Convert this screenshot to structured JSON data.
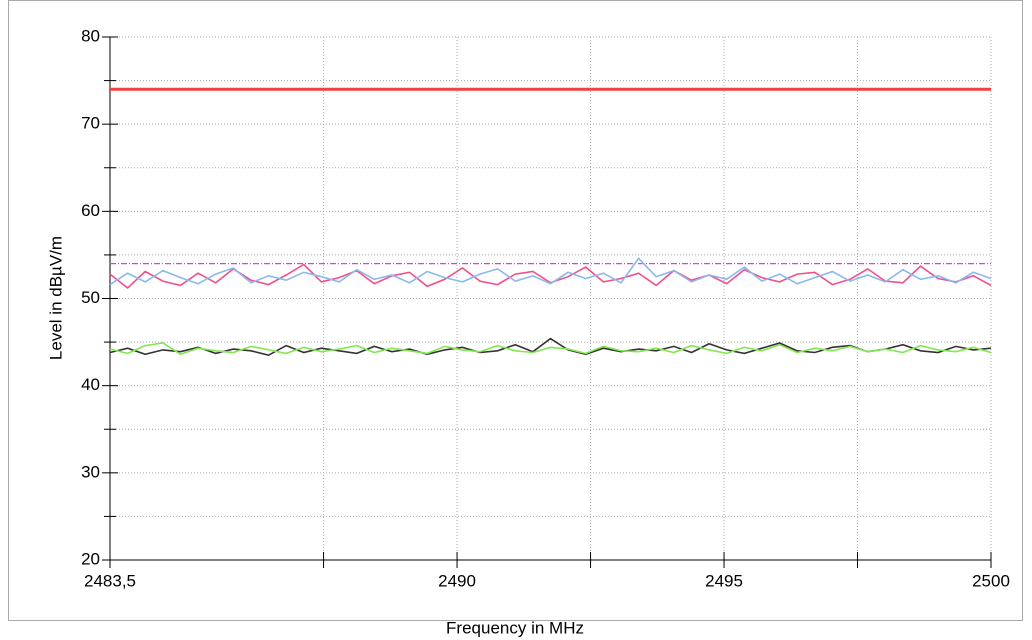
{
  "chart_data": {
    "type": "line",
    "xlabel": "Frequency in MHz",
    "ylabel": "Level in dBµV/m",
    "xlim": [
      2483.5,
      2500
    ],
    "xticks": [
      {
        "value": 2483.5,
        "label": "2483,5"
      },
      2490,
      2495,
      2500
    ],
    "xminor_ticks": [
      2487.5,
      2492.5,
      2497.5
    ],
    "ylim": [
      20,
      80
    ],
    "yticks": [
      20,
      30,
      40,
      50,
      60,
      70,
      80
    ],
    "yminor_ticks": [
      25,
      35,
      45,
      55,
      65,
      75
    ],
    "grid": true,
    "hlines": [
      {
        "value": 74,
        "color": "#f04040",
        "style": "solid"
      },
      {
        "value": 54,
        "color": "#e040e0",
        "style": "dashdot"
      }
    ],
    "x": [
      2483.5,
      2483.83,
      2484.16,
      2484.49,
      2484.82,
      2485.15,
      2485.48,
      2485.81,
      2486.14,
      2486.47,
      2486.8,
      2487.13,
      2487.46,
      2487.79,
      2488.12,
      2488.45,
      2488.78,
      2489.11,
      2489.44,
      2489.77,
      2490.1,
      2490.43,
      2490.76,
      2491.09,
      2491.42,
      2491.75,
      2492.08,
      2492.41,
      2492.74,
      2493.07,
      2493.4,
      2493.73,
      2494.06,
      2494.39,
      2494.72,
      2495.05,
      2495.38,
      2495.71,
      2496.04,
      2496.37,
      2496.7,
      2497.03,
      2497.36,
      2497.69,
      2498.02,
      2498.35,
      2498.68,
      2499.01,
      2499.34,
      2499.67,
      2500
    ],
    "series": [
      {
        "color": "#f0508a",
        "values": [
          52.8,
          51.2,
          53.1,
          52.0,
          51.5,
          52.9,
          51.8,
          53.4,
          52.1,
          51.6,
          52.7,
          53.9,
          51.9,
          52.4,
          53.2,
          51.7,
          52.6,
          53.0,
          51.4,
          52.2,
          53.5,
          52.0,
          51.6,
          52.8,
          53.1,
          51.8,
          52.5,
          53.6,
          51.9,
          52.3,
          52.9,
          51.5,
          53.2,
          52.1,
          52.7,
          51.7,
          53.3,
          52.4,
          51.9,
          52.8,
          53.0,
          51.6,
          52.2,
          53.4,
          52.0,
          51.8,
          53.7,
          52.3,
          51.9,
          52.6,
          51.5
        ]
      },
      {
        "color": "#8ab8f0",
        "values": [
          51.6,
          52.9,
          51.9,
          53.2,
          52.4,
          51.7,
          52.8,
          53.5,
          51.8,
          52.6,
          52.1,
          53.0,
          52.5,
          51.9,
          53.3,
          52.2,
          52.7,
          51.8,
          53.1,
          52.4,
          51.9,
          52.8,
          53.4,
          52.0,
          52.6,
          51.7,
          53.0,
          52.3,
          52.9,
          51.8,
          54.6,
          52.5,
          53.2,
          51.9,
          52.7,
          52.2,
          53.6,
          52.0,
          52.8,
          51.7,
          52.4,
          53.1,
          52.0,
          52.7,
          51.9,
          53.3,
          52.2,
          52.6,
          51.8,
          53.0,
          52.3
        ]
      },
      {
        "color": "#333333",
        "values": [
          43.8,
          44.3,
          43.6,
          44.1,
          43.9,
          44.4,
          43.7,
          44.2,
          44.0,
          43.5,
          44.6,
          43.8,
          44.3,
          44.0,
          43.7,
          44.5,
          43.9,
          44.2,
          43.6,
          44.1,
          44.4,
          43.8,
          44.0,
          44.7,
          43.9,
          45.4,
          44.1,
          43.6,
          44.3,
          43.9,
          44.2,
          44.0,
          44.5,
          43.8,
          44.8,
          44.1,
          43.7,
          44.3,
          44.9,
          44.0,
          43.8,
          44.4,
          44.6,
          43.9,
          44.2,
          44.7,
          44.0,
          43.8,
          44.5,
          44.1,
          44.3
        ]
      },
      {
        "color": "#80e850",
        "values": [
          44.2,
          43.7,
          44.6,
          44.9,
          43.6,
          44.3,
          44.0,
          43.8,
          44.5,
          44.1,
          43.7,
          44.4,
          43.9,
          44.2,
          44.6,
          43.8,
          44.3,
          44.0,
          43.7,
          44.5,
          44.1,
          43.9,
          44.6,
          44.0,
          43.8,
          44.4,
          44.2,
          43.7,
          44.5,
          44.0,
          43.9,
          44.3,
          43.8,
          44.6,
          44.1,
          43.7,
          44.4,
          44.0,
          44.7,
          43.8,
          44.3,
          44.0,
          44.5,
          43.9,
          44.2,
          43.8,
          44.6,
          44.1,
          43.9,
          44.4,
          43.8
        ]
      }
    ]
  }
}
